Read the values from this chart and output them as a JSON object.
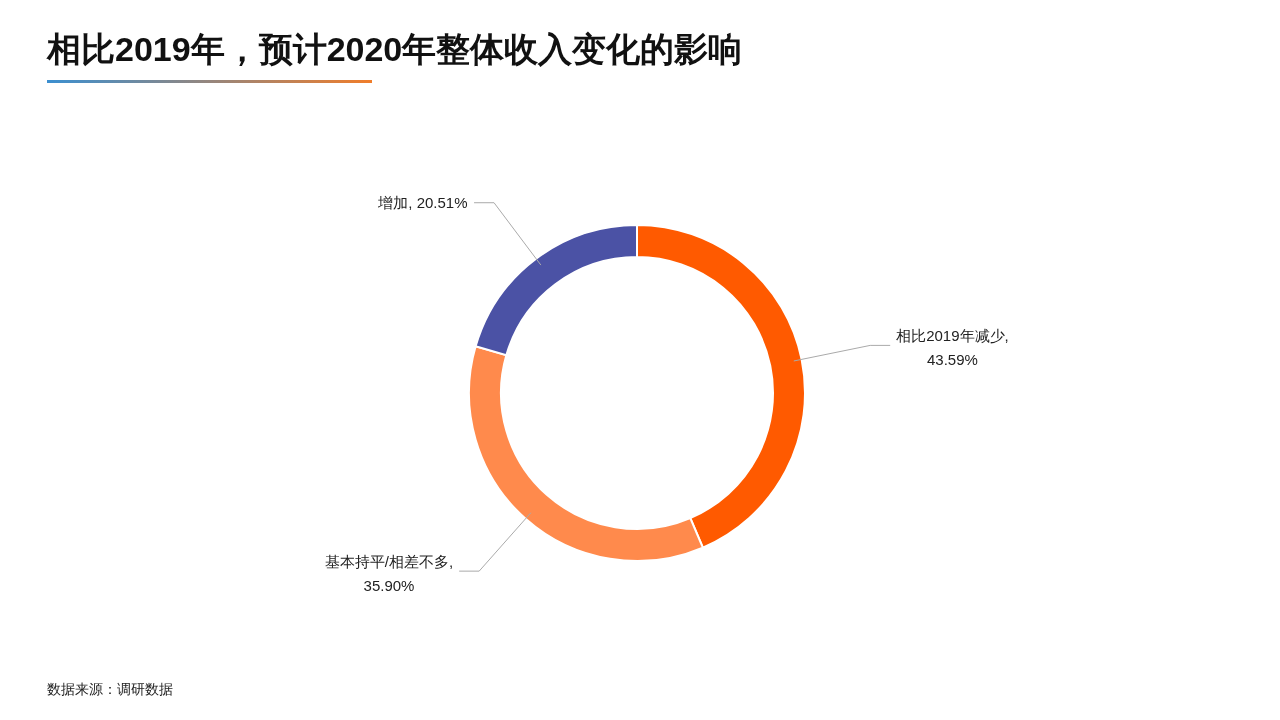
{
  "chart_data": {
    "type": "donut",
    "title": "相比2019年，预计2020年整体收入变化的影响",
    "categories": [
      "相比2019年减少",
      "基本持平/相差不多",
      "增加"
    ],
    "values": [
      43.59,
      35.9,
      20.51
    ],
    "value_labels": [
      ", 43.59%",
      ", 35.90%",
      ", 20.51%"
    ],
    "colors": [
      "#ff5a00",
      "#ff8a4c",
      "#4b52a5"
    ],
    "annotations": [
      "数据来源：调研数据"
    ]
  }
}
